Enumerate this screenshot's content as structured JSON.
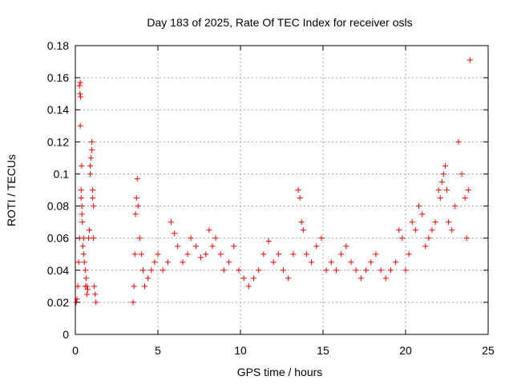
{
  "chart_data": {
    "type": "scatter",
    "title": "Day 183 of 2025, Rate Of TEC Index for receiver osls",
    "xlabel": "GPS time / hours",
    "ylabel": "ROTI / TECUs",
    "xlim": [
      0,
      25
    ],
    "ylim": [
      0,
      0.18
    ],
    "xticks": [
      0,
      5,
      10,
      15,
      20,
      25
    ],
    "xtick_labels": [
      "0",
      "5",
      "10",
      "15",
      "20",
      "25"
    ],
    "yticks": [
      0,
      0.02,
      0.04,
      0.06,
      0.08,
      0.1,
      0.12,
      0.14,
      0.16,
      0.18
    ],
    "ytick_labels": [
      "0",
      "0.02",
      "0.04",
      "0.06",
      "0.08",
      "0.1",
      "0.12",
      "0.14",
      "0.16",
      "0.18"
    ],
    "grid": true,
    "marker": "+",
    "color": "#ff0000",
    "series": [
      {
        "x": [
          0.05,
          0.1,
          0.15,
          0.2,
          0.25,
          0.25,
          0.28,
          0.3,
          0.3,
          0.32,
          0.35,
          0.35,
          0.38,
          0.4,
          0.4,
          0.42,
          0.45,
          0.5,
          0.5,
          0.55,
          0.6,
          0.6,
          0.65,
          0.7,
          0.7,
          0.75,
          0.8,
          0.85,
          0.9,
          0.9,
          0.95,
          1.0,
          1.0,
          1.05,
          1.05,
          1.1,
          1.1,
          1.15,
          1.2,
          1.25,
          3.5,
          3.55,
          3.6,
          3.65,
          3.7,
          3.75,
          3.8,
          3.9,
          4.0,
          4.1,
          4.2,
          4.4,
          4.6,
          4.8,
          5.0,
          5.3,
          5.6,
          5.8,
          6.0,
          6.2,
          6.5,
          6.8,
          7.0,
          7.3,
          7.6,
          7.9,
          8.1,
          8.3,
          8.5,
          8.8,
          9.0,
          9.3,
          9.6,
          9.9,
          10.2,
          10.5,
          10.8,
          11.1,
          11.4,
          11.7,
          12.0,
          12.3,
          12.6,
          12.9,
          13.2,
          13.5,
          13.6,
          13.7,
          13.8,
          14.0,
          14.3,
          14.6,
          14.9,
          15.2,
          15.5,
          15.8,
          16.1,
          16.4,
          16.7,
          17.0,
          17.3,
          17.6,
          17.9,
          18.2,
          18.5,
          18.8,
          19.1,
          19.4,
          19.6,
          19.8,
          20.0,
          20.2,
          20.4,
          20.6,
          20.8,
          21.0,
          21.2,
          21.4,
          21.6,
          21.8,
          22.0,
          22.1,
          22.2,
          22.3,
          22.4,
          22.5,
          22.6,
          22.8,
          23.0,
          23.2,
          23.4,
          23.6,
          23.7,
          23.8,
          23.9
        ],
        "y": [
          0.02,
          0.022,
          0.03,
          0.045,
          0.06,
          0.155,
          0.15,
          0.13,
          0.157,
          0.148,
          0.085,
          0.09,
          0.105,
          0.075,
          0.08,
          0.07,
          0.055,
          0.05,
          0.06,
          0.045,
          0.04,
          0.03,
          0.035,
          0.025,
          0.03,
          0.028,
          0.06,
          0.065,
          0.1,
          0.105,
          0.11,
          0.12,
          0.115,
          0.09,
          0.085,
          0.08,
          0.06,
          0.03,
          0.025,
          0.02,
          0.02,
          0.03,
          0.05,
          0.075,
          0.085,
          0.097,
          0.08,
          0.06,
          0.05,
          0.04,
          0.03,
          0.035,
          0.04,
          0.045,
          0.05,
          0.04,
          0.045,
          0.07,
          0.063,
          0.055,
          0.045,
          0.05,
          0.06,
          0.055,
          0.048,
          0.05,
          0.065,
          0.055,
          0.06,
          0.05,
          0.04,
          0.045,
          0.055,
          0.04,
          0.035,
          0.03,
          0.035,
          0.04,
          0.05,
          0.058,
          0.045,
          0.05,
          0.04,
          0.035,
          0.05,
          0.09,
          0.085,
          0.07,
          0.065,
          0.05,
          0.045,
          0.055,
          0.06,
          0.04,
          0.045,
          0.04,
          0.05,
          0.055,
          0.045,
          0.04,
          0.035,
          0.04,
          0.045,
          0.05,
          0.04,
          0.035,
          0.04,
          0.045,
          0.065,
          0.06,
          0.04,
          0.05,
          0.07,
          0.065,
          0.08,
          0.075,
          0.055,
          0.06,
          0.065,
          0.07,
          0.09,
          0.085,
          0.095,
          0.1,
          0.105,
          0.09,
          0.07,
          0.065,
          0.08,
          0.12,
          0.1,
          0.085,
          0.06,
          0.09,
          0.171
        ]
      }
    ]
  }
}
